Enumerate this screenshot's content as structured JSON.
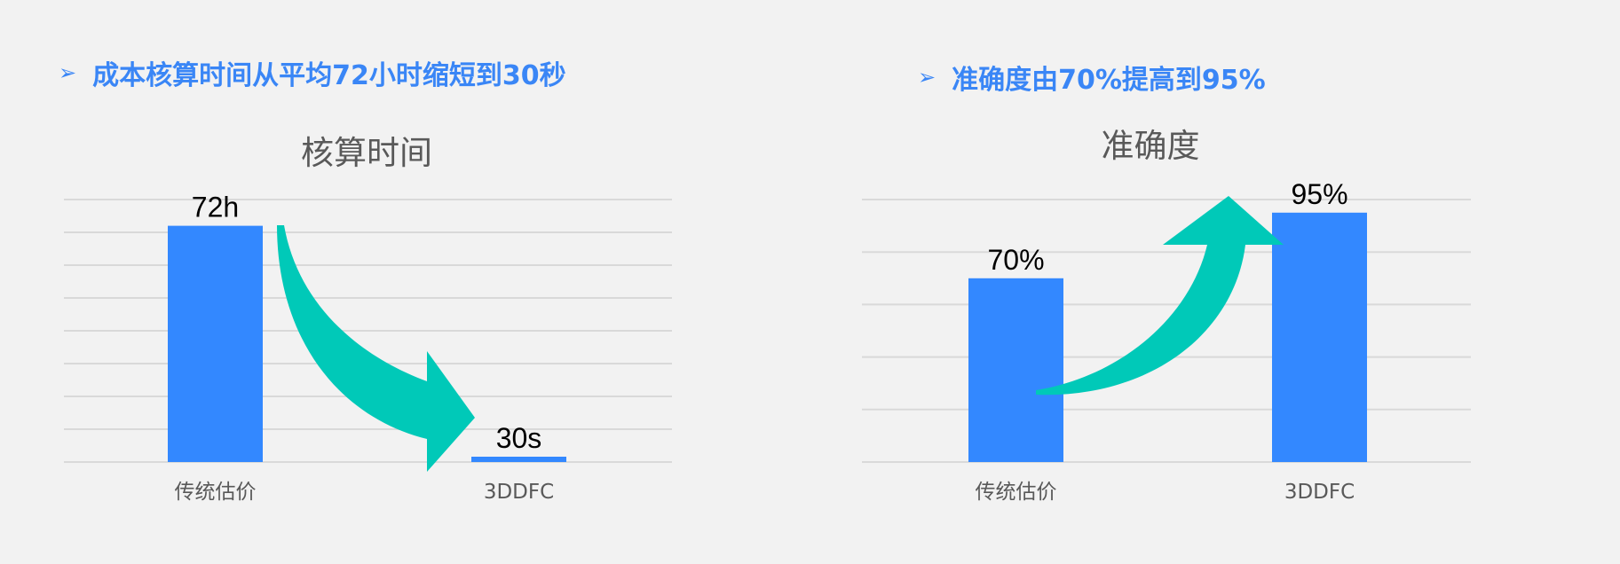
{
  "headlines": [
    {
      "bullet_icon": "arrowhead-bullet",
      "text": "成本核算时间从平均72小时缩短到30秒"
    },
    {
      "bullet_icon": "arrowhead-bullet",
      "text": "准确度由70%提高到95%"
    }
  ],
  "colors": {
    "bar": "#3388ff",
    "arrow": "#00c9b8",
    "headline": "#3a86f6",
    "background": "#f2f2f2",
    "grid": "#d9d9d9"
  },
  "chart_data": [
    {
      "type": "bar",
      "title": "核算时间",
      "categories": [
        "传统估价",
        "3DDFC"
      ],
      "values": [
        72,
        0.0083
      ],
      "value_labels": [
        "72h",
        "30s"
      ],
      "unit": "hours",
      "ylim": [
        0,
        80
      ],
      "grid": true,
      "annotation": "downward curved arrow"
    },
    {
      "type": "bar",
      "title": "准确度",
      "categories": [
        "传统估价",
        "3DDFC"
      ],
      "values": [
        70,
        95
      ],
      "value_labels": [
        "70%",
        "95%"
      ],
      "ylim": [
        0,
        100
      ],
      "grid": true,
      "annotation": "upward curved arrow"
    }
  ]
}
